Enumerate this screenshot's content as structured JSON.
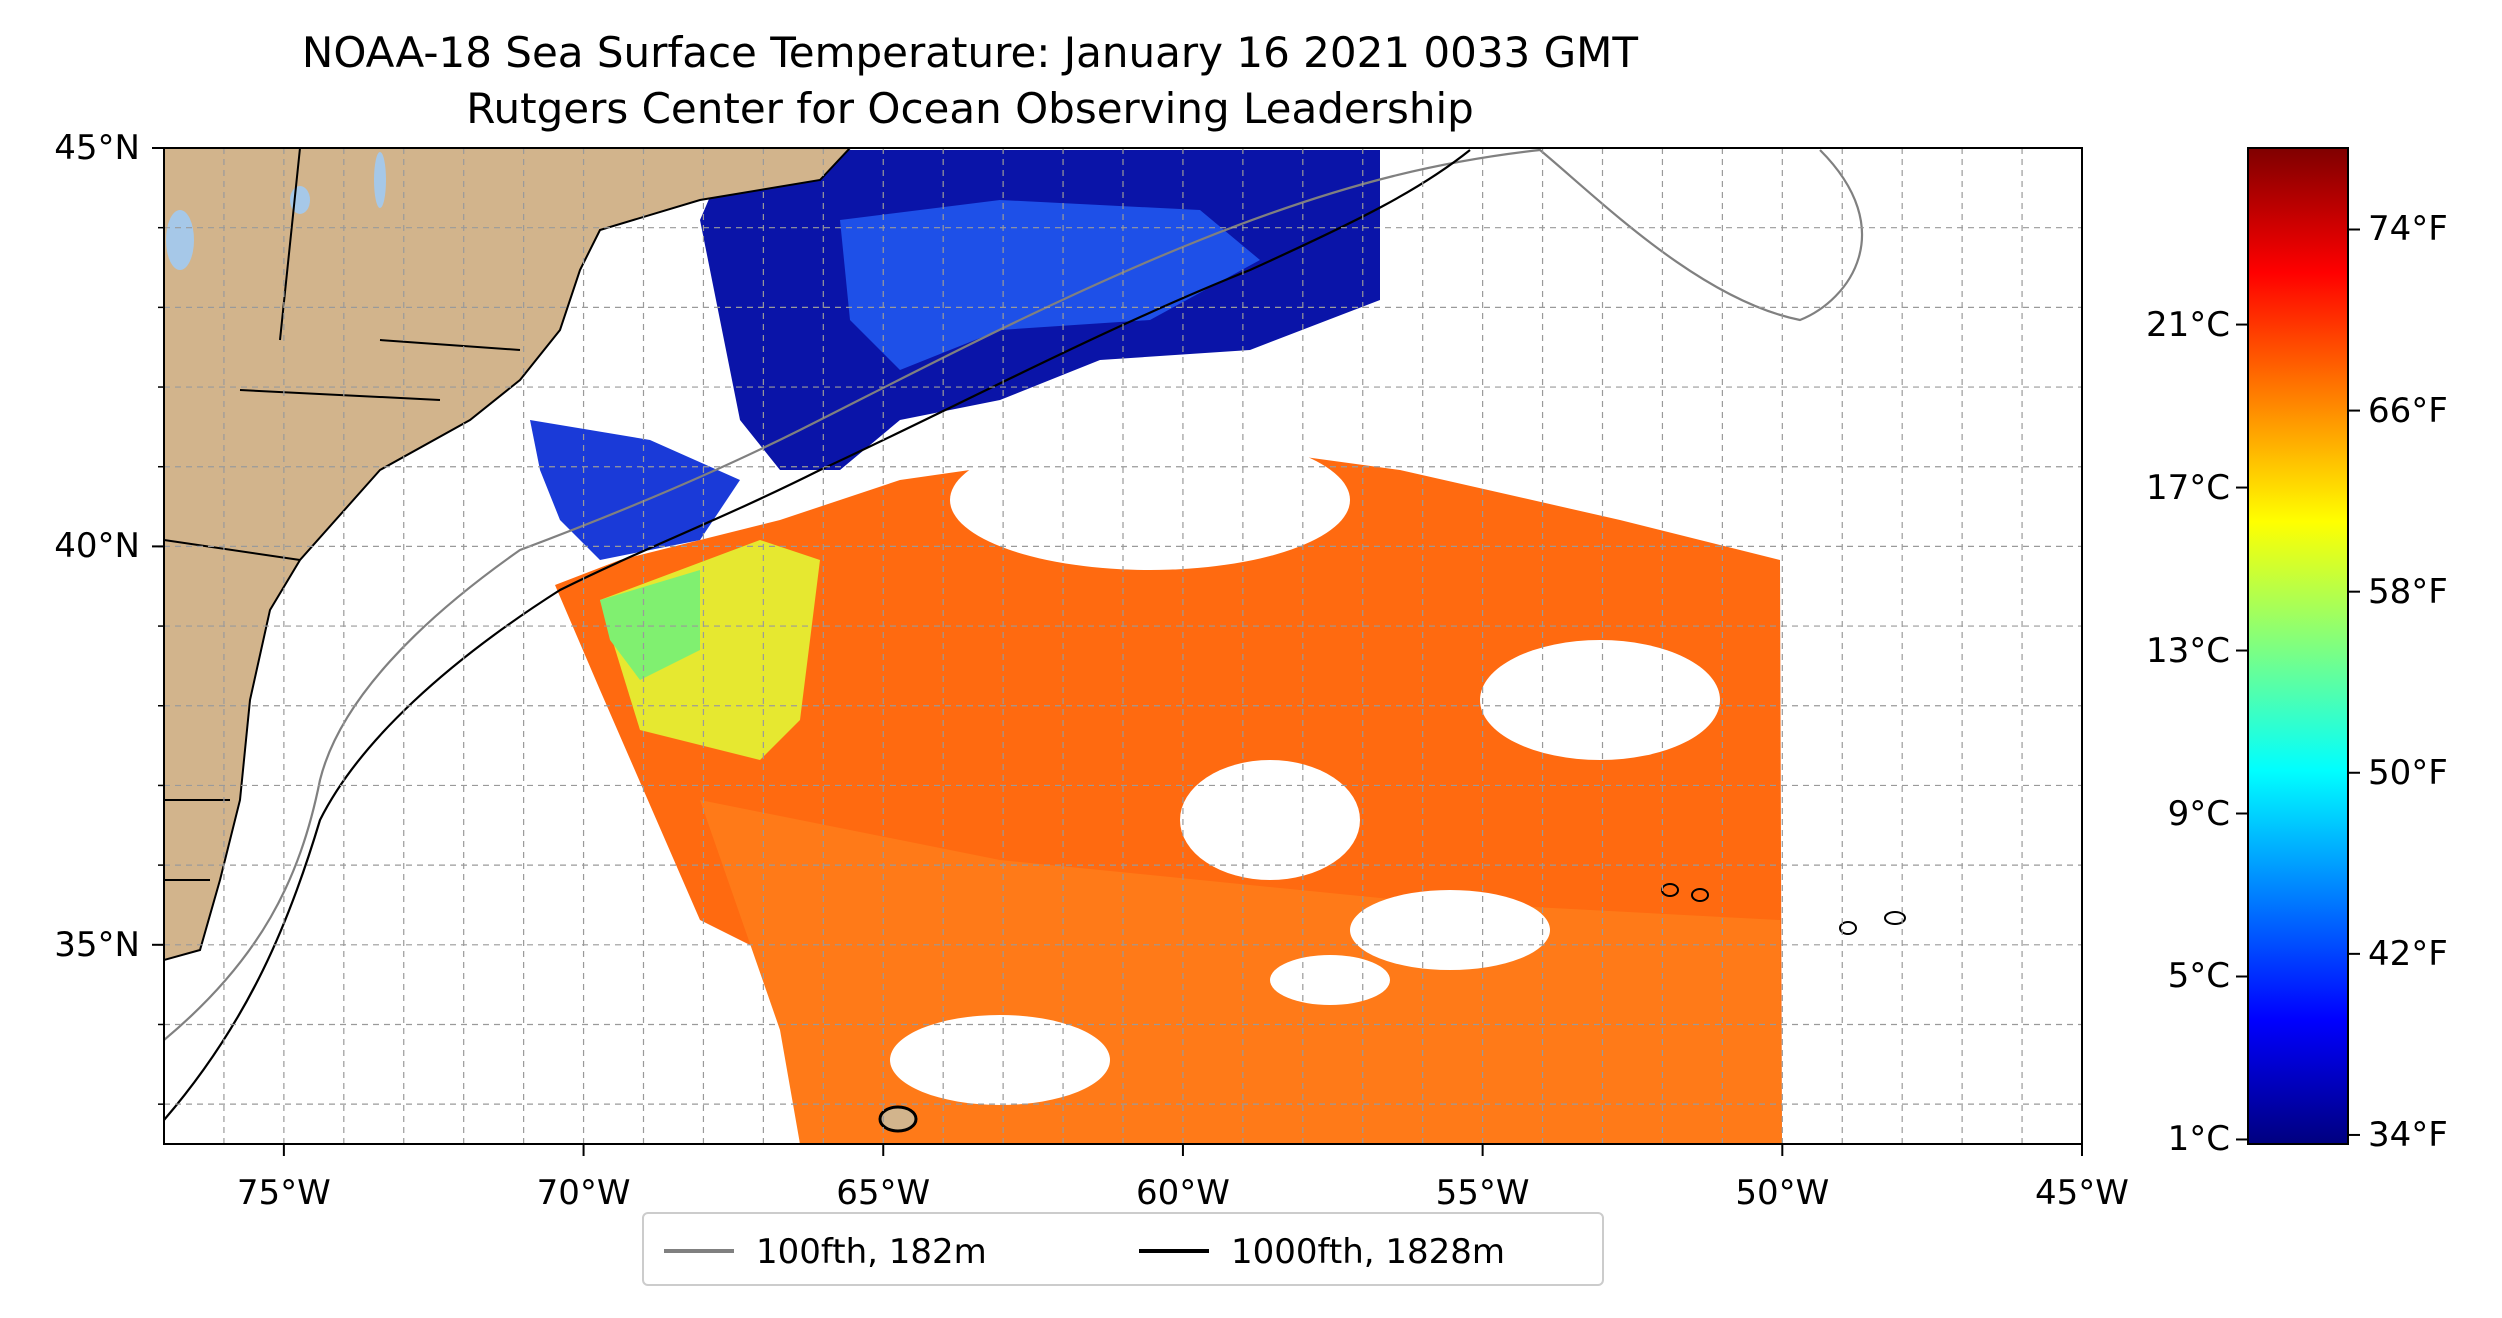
{
  "title": {
    "line1": "NOAA-18 Sea Surface Temperature: January 16 2021 0033 GMT",
    "line2": "Rutgers Center for Ocean Observing Leadership"
  },
  "map": {
    "lon_range": [
      -77,
      -45
    ],
    "lat_range": [
      32.5,
      45
    ],
    "lon_ticks": [
      {
        "value": -75,
        "label": "75°W"
      },
      {
        "value": -70,
        "label": "70°W"
      },
      {
        "value": -65,
        "label": "65°W"
      },
      {
        "value": -60,
        "label": "60°W"
      },
      {
        "value": -55,
        "label": "55°W"
      },
      {
        "value": -50,
        "label": "50°W"
      },
      {
        "value": -45,
        "label": "45°W"
      }
    ],
    "lat_ticks": [
      {
        "value": 45,
        "label": "45°N"
      },
      {
        "value": 40,
        "label": "40°N"
      },
      {
        "value": 35,
        "label": "35°N"
      }
    ],
    "grid": true,
    "colors": {
      "land": "#d2b48c",
      "lakes": "#a6c8e8",
      "cold_water": "#0a14a8",
      "warm_water": "#ff6a10",
      "isobath_100fth": "#808080",
      "isobath_1000fth": "#000000"
    }
  },
  "legend": {
    "items": [
      {
        "label": "100fth, 182m",
        "color": "#808080"
      },
      {
        "label": "1000fth, 1828m",
        "color": "#000000"
      }
    ]
  },
  "colorbar": {
    "colormap": "jet",
    "celsius_ticks": [
      "21°C",
      "17°C",
      "13°C",
      "9°C",
      "5°C",
      "1°C"
    ],
    "fahrenheit_ticks": [
      "74°F",
      "66°F",
      "58°F",
      "50°F",
      "42°F",
      "34°F"
    ],
    "fahrenheit_values": [
      74,
      66,
      58,
      50,
      42,
      34
    ],
    "range_f": [
      33.6,
      77.6
    ]
  }
}
